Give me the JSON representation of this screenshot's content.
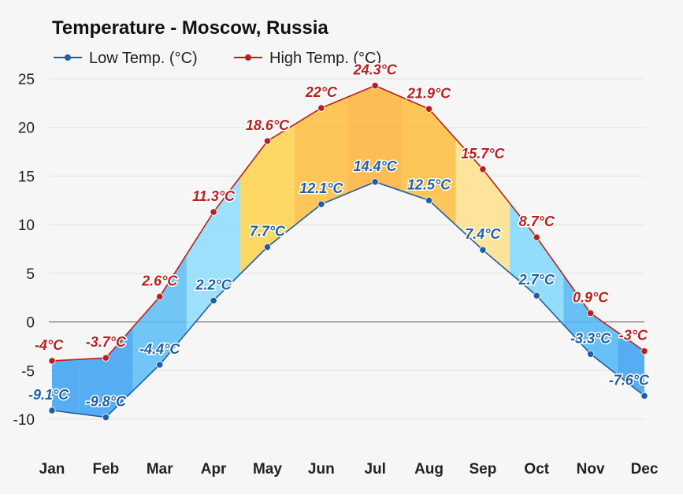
{
  "chart_data": {
    "type": "line",
    "title": "Temperature - Moscow, Russia",
    "categories": [
      "Jan",
      "Feb",
      "Mar",
      "Apr",
      "May",
      "Jun",
      "Jul",
      "Aug",
      "Sep",
      "Oct",
      "Nov",
      "Dec"
    ],
    "series": [
      {
        "name": "Low Temp. (°C)",
        "values": [
          -9.1,
          -9.8,
          -4.4,
          2.2,
          7.7,
          12.1,
          14.4,
          12.5,
          7.4,
          2.7,
          -3.3,
          -7.6
        ],
        "labels": [
          "-9.1°C",
          "-9.8°C",
          "-4.4°C",
          "2.2°C",
          "7.7°C",
          "12.1°C",
          "14.4°C",
          "12.5°C",
          "7.4°C",
          "2.7°C",
          "-3.3°C",
          "-7.6°C"
        ],
        "color": "#1f5fa3"
      },
      {
        "name": "High Temp. (°C)",
        "values": [
          -4,
          -3.7,
          2.6,
          11.3,
          18.6,
          22,
          24.3,
          21.9,
          15.7,
          8.7,
          0.9,
          -3
        ],
        "labels": [
          "-4°C",
          "-3.7°C",
          "2.6°C",
          "11.3°C",
          "18.6°C",
          "22°C",
          "24.3°C",
          "21.9°C",
          "15.7°C",
          "8.7°C",
          "0.9°C",
          "-3°C"
        ],
        "color": "#b81f1f"
      }
    ],
    "yticks": [
      "25",
      "20",
      "15",
      "10",
      "5",
      "0",
      "-5",
      "-10"
    ],
    "ylim": [
      -12.5,
      26.5
    ],
    "legend": "top-left",
    "grid": true,
    "fill_colors": [
      "#3aa0f0",
      "#3aa0f0",
      "#5bbcf7",
      "#8ddcfb",
      "#ffd24a",
      "#ffbd3c",
      "#ffb23a",
      "#ffbd3c",
      "#ffe08a",
      "#7fd8fb",
      "#4fb6f6",
      "#3aa0f0",
      "#3aa0f0"
    ]
  }
}
